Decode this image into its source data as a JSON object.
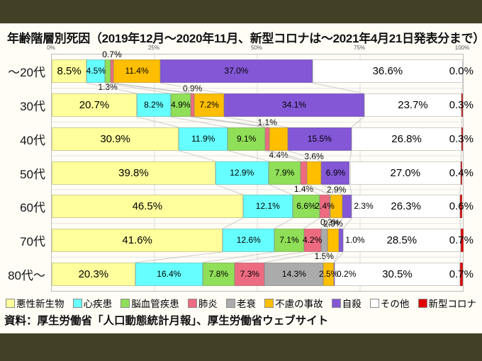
{
  "slide": {
    "title": "年齢階層別死因（2019年12月～2020年11月、新型コロナは～2021年4月21日発表分まで）",
    "source": "資料：厚生労働省「人口動態統計月報」、厚生労働省ウェブサイト",
    "band_color": "#434028",
    "card_color": "#FFFDF6"
  },
  "chart_data": {
    "type": "bar",
    "variant": "horizontal-stacked-100pct",
    "title": "年齢階層別死因（2019年12月～2020年11月、新型コロナは～2021年4月21日発表分まで）",
    "unit": "%",
    "x_axis": {
      "range": [
        0,
        100
      ],
      "tick_labels": [
        "0%",
        "25%",
        "50%",
        "75%",
        "100%"
      ],
      "grid": true
    },
    "legend_position": "bottom",
    "categories": [
      "～20代",
      "30代",
      "40代",
      "50代",
      "60代",
      "70代",
      "80代～"
    ],
    "series": [
      {
        "name": "悪性新生物",
        "color": "#FFFF9C",
        "values": [
          8.5,
          20.7,
          30.9,
          39.8,
          46.5,
          41.6,
          20.3
        ],
        "label_pos": [
          "in",
          "in",
          "in",
          "in",
          "in",
          "in",
          "in"
        ],
        "label_size": "big"
      },
      {
        "name": "心疾患",
        "color": "#66FFFF",
        "values": [
          4.5,
          8.2,
          11.9,
          12.9,
          12.1,
          12.6,
          16.4
        ],
        "label_pos": [
          "in",
          "in",
          "in",
          "in",
          "in",
          "in",
          "in"
        ],
        "label_size": "small"
      },
      {
        "name": "脳血管疾患",
        "color": "#90DF58",
        "values": [
          1.3,
          4.9,
          9.1,
          7.9,
          6.6,
          7.1,
          7.8
        ],
        "label_pos": [
          "below",
          "in",
          "in",
          "in",
          "in",
          "in",
          "in"
        ],
        "label_size": "small"
      },
      {
        "name": "肺炎",
        "color": "#ED6B80",
        "values": [
          0.7,
          0.9,
          1.1,
          1.4,
          2.4,
          4.2,
          7.3
        ],
        "label_pos": [
          "above",
          "above",
          "above",
          "below",
          "in",
          "in",
          "in"
        ],
        "label_size": "small"
      },
      {
        "name": "老衰",
        "color": "#ABABAB",
        "values": [
          0.0,
          0.0,
          0.0,
          0.0,
          0.2,
          1.5,
          14.3
        ],
        "label_pos": [
          "none",
          "none",
          "none",
          "none",
          "below",
          "below",
          "in"
        ],
        "label_size": "small"
      },
      {
        "name": "不慮の事故",
        "color": "#FFBE00",
        "values": [
          11.4,
          7.2,
          4.4,
          3.6,
          2.9,
          2.9,
          2.5
        ],
        "label_pos": [
          "in",
          "in",
          "below",
          "above",
          "above",
          "above",
          "in"
        ],
        "label_size": "small"
      },
      {
        "name": "自殺",
        "color": "#8357D6",
        "values": [
          37.0,
          34.1,
          15.5,
          6.9,
          2.3,
          1.0,
          0.2
        ],
        "label_pos": [
          "in",
          "in",
          "in",
          "in",
          "right",
          "right",
          "right"
        ],
        "label_size": "small"
      },
      {
        "name": "その他",
        "color": "#FFFFFF",
        "values": [
          36.6,
          23.7,
          26.8,
          27.0,
          26.3,
          28.5,
          30.5
        ],
        "label_pos": [
          "in",
          "in",
          "in",
          "in",
          "in",
          "in",
          "in"
        ],
        "label_size": "big"
      },
      {
        "name": "新型コロナ",
        "color": "#E00000",
        "values": [
          0.0,
          0.3,
          0.3,
          0.4,
          0.6,
          0.7,
          0.7
        ],
        "label_pos": [
          "end",
          "end",
          "end",
          "end",
          "end",
          "end",
          "end"
        ],
        "label_size": "big"
      }
    ]
  }
}
